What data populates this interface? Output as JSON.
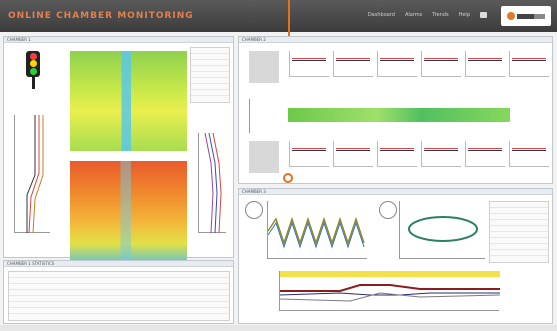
{
  "header": {
    "app_title": "ONLINE CHAMBER MONITORING",
    "nav": [
      "Dashboard",
      "Alarms",
      "Trends",
      "Help"
    ]
  },
  "left_panel": {
    "title": "CHAMBER 1"
  },
  "right_top_panel": {
    "title": "CHAMBER 2"
  },
  "right_bottom_panel": {
    "title": "CHAMBER 3"
  },
  "bottom_left_panel": {
    "title": "CHAMBER 1 STATISTICS"
  },
  "colors": {
    "accent": "#e8701c",
    "header_bg": "#454545",
    "panel_border": "#bfc7cf"
  }
}
